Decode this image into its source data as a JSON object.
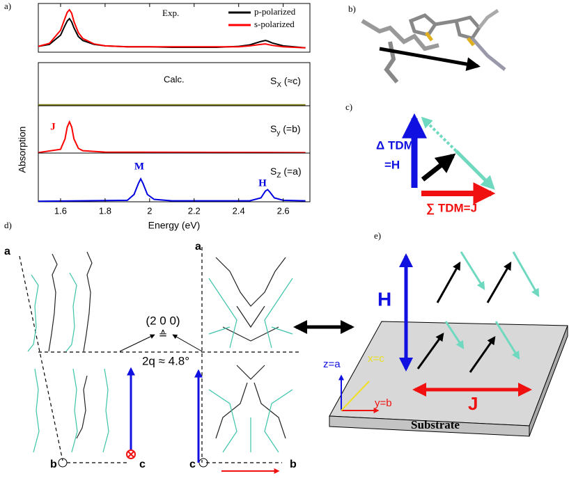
{
  "panel_labels": [
    "a)",
    "b)",
    "c)",
    "d)",
    "e)"
  ],
  "chart_data": [
    {
      "type": "line",
      "note": "Exp.",
      "x": [
        1.5,
        1.55,
        1.6,
        1.62,
        1.63,
        1.64,
        1.65,
        1.66,
        1.68,
        1.7,
        1.75,
        1.8,
        1.9,
        2.0,
        2.1,
        2.2,
        2.3,
        2.4,
        2.45,
        2.5,
        2.52,
        2.53,
        2.55,
        2.6,
        2.7
      ],
      "series": [
        {
          "name": "p-polarized",
          "color": "#000000",
          "values": [
            0.12,
            0.16,
            0.35,
            0.55,
            0.64,
            0.69,
            0.62,
            0.5,
            0.32,
            0.24,
            0.16,
            0.13,
            0.11,
            0.11,
            0.1,
            0.1,
            0.1,
            0.12,
            0.15,
            0.22,
            0.24,
            0.23,
            0.19,
            0.13,
            0.09
          ]
        },
        {
          "name": "s-polarized",
          "color": "#ff0000",
          "values": [
            0.12,
            0.18,
            0.45,
            0.7,
            0.82,
            0.87,
            0.8,
            0.63,
            0.4,
            0.28,
            0.17,
            0.13,
            0.11,
            0.11,
            0.11,
            0.11,
            0.11,
            0.11,
            0.13,
            0.16,
            0.17,
            0.16,
            0.14,
            0.11,
            0.09
          ]
        }
      ],
      "xlim": [
        1.5,
        2.72
      ],
      "ylim": [
        0,
        1
      ],
      "legend": "upper right"
    },
    {
      "type": "line",
      "note": "Calc.",
      "label_main": "S",
      "label_sub": "X",
      "label_rest": " (≈c)",
      "x": [
        1.5,
        2.7
      ],
      "series": [
        {
          "color": "#7a7a10",
          "values": [
            0.02,
            0.02
          ]
        }
      ],
      "xlim": [
        1.5,
        2.72
      ],
      "ylim": [
        0,
        1
      ]
    },
    {
      "type": "line",
      "label_main": "S",
      "label_sub": "y",
      "label_rest": " (=b)",
      "peak_labels": [
        "J"
      ],
      "x": [
        1.5,
        1.6,
        1.62,
        1.63,
        1.64,
        1.65,
        1.66,
        1.68,
        1.7,
        1.8,
        2.7
      ],
      "series": [
        {
          "color": "#ff0000",
          "values": [
            0.01,
            0.08,
            0.3,
            0.55,
            0.66,
            0.55,
            0.3,
            0.1,
            0.05,
            0.02,
            0.01
          ]
        }
      ],
      "xlim": [
        1.5,
        2.72
      ],
      "ylim": [
        0,
        1
      ]
    },
    {
      "type": "line",
      "label_main": "S",
      "label_sub": "Z",
      "label_rest": " (=a)",
      "peak_labels": [
        "M",
        "H"
      ],
      "x": [
        1.5,
        1.9,
        1.93,
        1.95,
        1.96,
        1.97,
        1.99,
        2.02,
        2.1,
        2.45,
        2.5,
        2.52,
        2.53,
        2.54,
        2.56,
        2.6,
        2.7
      ],
      "series": [
        {
          "color": "#0000e0",
          "values": [
            0.01,
            0.03,
            0.15,
            0.38,
            0.47,
            0.38,
            0.15,
            0.05,
            0.02,
            0.02,
            0.08,
            0.22,
            0.25,
            0.2,
            0.08,
            0.03,
            0.02
          ]
        }
      ],
      "xlim": [
        1.5,
        2.72
      ],
      "ylim": [
        0,
        1
      ],
      "xticks": [
        1.6,
        1.8,
        2.0,
        2.2,
        2.4,
        2.6
      ],
      "xlabel": "Energy (eV)",
      "ylabel": "Absorption"
    }
  ],
  "panel_c": {
    "delta_label": "Δ TDM",
    "delta_label2": "=H",
    "sum_label": "∑ TDM=J"
  },
  "panel_d": {
    "axis_labels": [
      "a",
      "b",
      "c",
      "a",
      "c",
      "b"
    ],
    "reflection": "(2 0 0)",
    "corresponds": "≙",
    "angle": "2q ≈ 4.8°"
  },
  "panel_e": {
    "H": "H",
    "J": "J",
    "z": "z=a",
    "x": "x=c",
    "y": "y=b",
    "substrate": "Substrate"
  }
}
